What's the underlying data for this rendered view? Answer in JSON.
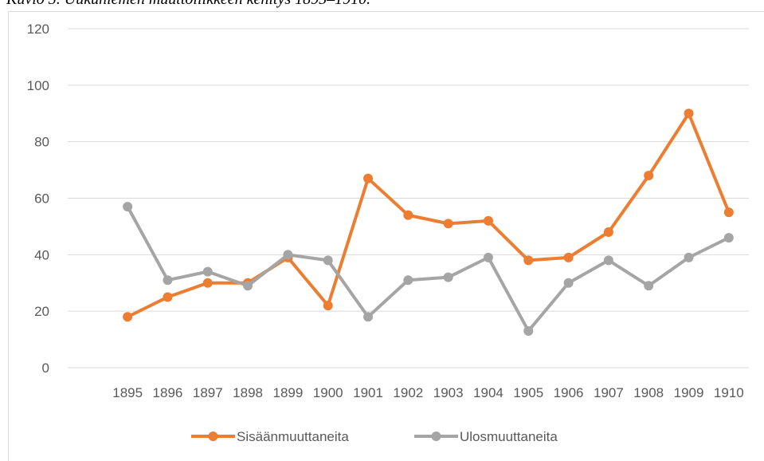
{
  "chart_data": {
    "type": "line",
    "title": "Kuvio 3. Uukuniemen muuttoliikkeen kehitys 1895–1910.",
    "categories": [
      "1895",
      "1896",
      "1897",
      "1898",
      "1899",
      "1900",
      "1901",
      "1902",
      "1903",
      "1904",
      "1905",
      "1906",
      "1907",
      "1908",
      "1909",
      "1910"
    ],
    "series": [
      {
        "name": "Sisäänmuuttaneita",
        "color": "#ed7d31",
        "values": [
          18,
          25,
          30,
          30,
          39,
          22,
          67,
          54,
          51,
          52,
          38,
          39,
          48,
          68,
          90,
          55
        ]
      },
      {
        "name": "Ulosmuuttaneita",
        "color": "#a5a5a5",
        "values": [
          57,
          31,
          34,
          29,
          40,
          38,
          18,
          31,
          32,
          39,
          13,
          30,
          38,
          29,
          39,
          46
        ]
      }
    ],
    "ylim": [
      0,
      120
    ],
    "yticks": [
      0,
      20,
      40,
      60,
      80,
      100,
      120
    ],
    "grid": true,
    "legend": "bottom"
  }
}
